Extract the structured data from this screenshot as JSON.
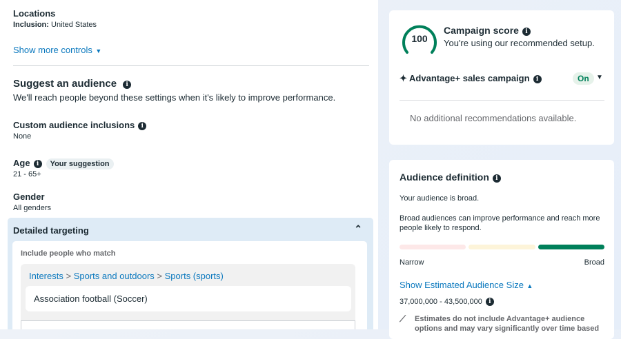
{
  "left": {
    "locations": {
      "title": "Locations",
      "label": "Inclusion:",
      "value": "United States"
    },
    "show_more": "Show more controls",
    "suggest": {
      "title": "Suggest an audience",
      "desc": "We'll reach people beyond these settings when it's likely to improve performance."
    },
    "custom": {
      "title": "Custom audience inclusions",
      "value": "None"
    },
    "age": {
      "title": "Age",
      "badge": "Your suggestion",
      "value": "21 - 65+"
    },
    "gender": {
      "title": "Gender",
      "value": "All genders"
    },
    "detailed": {
      "title": "Detailed targeting",
      "include": "Include people who match",
      "path": [
        "Interests",
        "Sports and outdoors",
        "Sports (sports)"
      ],
      "item": "Association football (Soccer)"
    }
  },
  "score": {
    "value": "100",
    "title": "Campaign score",
    "desc": "You're using our recommended setup.",
    "advantage": "Advantage+ sales campaign",
    "status": "On",
    "none": "No additional recommendations available.",
    "color": "#00805a"
  },
  "audience": {
    "title": "Audience definition",
    "broad": "Your audience is broad.",
    "desc": "Broad audiences can improve performance and reach more people likely to respond.",
    "narrow": "Narrow",
    "broad_label": "Broad",
    "level": "broad",
    "show_size": "Show Estimated Audience Size",
    "size": "37,000,000 - 43,500,000",
    "note": "Estimates do not include Advantage+ audience options and may vary significantly over time based"
  }
}
